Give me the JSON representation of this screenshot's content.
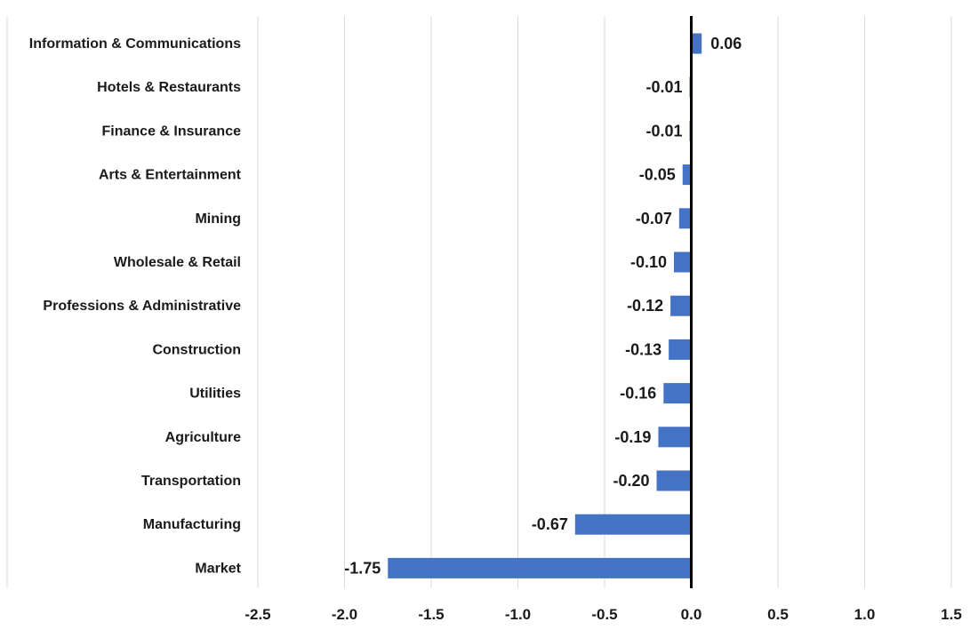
{
  "chart_data": {
    "type": "bar",
    "orientation": "horizontal",
    "title": "",
    "xlabel": "",
    "ylabel": "",
    "categories": [
      "Information & Communications",
      "Hotels & Restaurants",
      "Finance & Insurance",
      "Arts & Entertainment",
      "Mining",
      "Wholesale & Retail",
      "Professions & Administrative",
      "Construction",
      "Utilities",
      "Agriculture",
      "Transportation",
      "Manufacturing",
      "Market"
    ],
    "values": [
      0.06,
      -0.01,
      -0.01,
      -0.05,
      -0.07,
      -0.1,
      -0.12,
      -0.13,
      -0.16,
      -0.19,
      -0.2,
      -0.67,
      -1.75
    ],
    "value_labels": [
      "0.06",
      "-0.01",
      "-0.01",
      "-0.05",
      "-0.07",
      "-0.10",
      "-0.12",
      "-0.13",
      "-0.16",
      "-0.19",
      "-0.20",
      "-0.67",
      "-1.75"
    ],
    "xlim": [
      -2.5,
      1.5
    ],
    "xticks": [
      -2.5,
      -2.0,
      -1.5,
      -1.0,
      -0.5,
      0.0,
      0.5,
      1.0,
      1.5
    ],
    "xtick_labels": [
      "-2.5",
      "-2.0",
      "-1.5",
      "-1.0",
      "-0.5",
      "0.0",
      "0.5",
      "1.0",
      "1.5"
    ],
    "grid": "vertical",
    "legend": "none",
    "bar_color": "#4472c4",
    "zero_line_color": "#000000"
  }
}
